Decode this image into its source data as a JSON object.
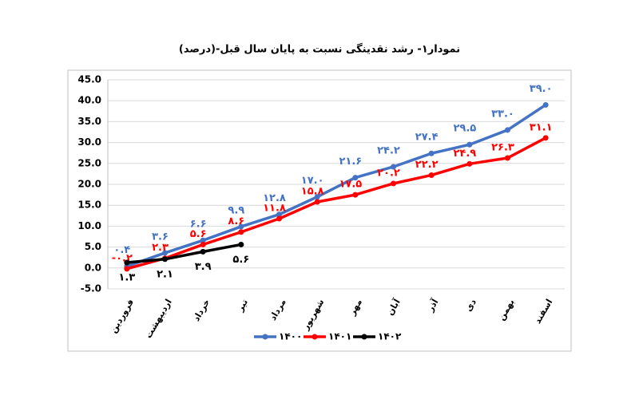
{
  "chart_data": {
    "type": "line",
    "title": "نمودار۱- رشد نقدینگی نسبت به پایان سال قبل-(درصد)",
    "categories": [
      "فروردین",
      "اردیبهشت",
      "خرداد",
      "تیر",
      "مرداد",
      "شهریور",
      "مهر",
      "آبان",
      "آذر",
      "دی",
      "بهمن",
      "اسفند"
    ],
    "series": [
      {
        "name": "۱۴۰۰",
        "color": "#4472c4",
        "values": [
          0.4,
          3.6,
          6.6,
          9.9,
          12.8,
          17.0,
          21.6,
          24.2,
          27.4,
          29.5,
          33.0,
          39.0
        ],
        "value_labels": [
          "۰.۴",
          "۳.۶",
          "۶.۶",
          "۹.۹",
          "۱۲.۸",
          "۱۷.۰",
          "۲۱.۶",
          "۲۴.۲",
          "۲۷.۴",
          "۲۹.۵",
          "۳۳.۰",
          "۳۹.۰"
        ]
      },
      {
        "name": "۱۴۰۱",
        "color": "#ff0000",
        "values": [
          -0.2,
          2.3,
          5.6,
          8.6,
          11.8,
          15.8,
          17.5,
          20.2,
          22.2,
          24.9,
          26.3,
          31.1
        ],
        "value_labels": [
          "-۰.۲",
          "۲.۳",
          "۵.۶",
          "۸.۶",
          "۱۱.۸",
          "۱۵.۸",
          "۱۷.۵",
          "۲۰.۲",
          "۲۲.۲",
          "۲۴.۹",
          "۲۶.۳",
          "۳۱.۱"
        ]
      },
      {
        "name": "۱۴۰۲",
        "color": "#000000",
        "values": [
          1.3,
          2.1,
          3.9,
          5.6,
          null,
          null,
          null,
          null,
          null,
          null,
          null,
          null
        ],
        "value_labels": [
          "۱.۳",
          "۲.۱",
          "۳.۹",
          "۵.۶",
          null,
          null,
          null,
          null,
          null,
          null,
          null,
          null
        ]
      }
    ],
    "ylim": [
      -5,
      45
    ],
    "yticks": [
      {
        "value": -5,
        "label": "-5.0"
      },
      {
        "value": 0,
        "label": "0.0"
      },
      {
        "value": 5,
        "label": "5.0"
      },
      {
        "value": 10,
        "label": "10.0"
      },
      {
        "value": 15,
        "label": "15.0"
      },
      {
        "value": 20,
        "label": "20.0"
      },
      {
        "value": 25,
        "label": "25.0"
      },
      {
        "value": 30,
        "label": "30.0"
      },
      {
        "value": 35,
        "label": "35.0"
      },
      {
        "value": 40,
        "label": "40.0"
      },
      {
        "value": 45,
        "label": "45.0"
      }
    ],
    "grid": true,
    "legend": "bottom"
  }
}
